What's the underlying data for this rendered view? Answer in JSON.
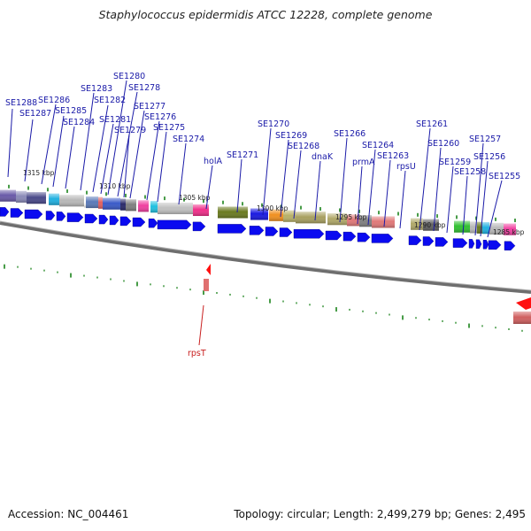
{
  "title": "Staphylococcus epidermidis ATCC 12228, complete genome",
  "footer": {
    "accession": "Accession: NC_004461",
    "topology": "Topology: circular; Length: 2,499,279 bp; Genes: 2,495"
  },
  "colors": {
    "gene_label": "#1a1aa8",
    "minus_strand_label": "#c81e1e",
    "forward_arrow": "#0a0af0",
    "reverse_arrow": "#ff1010",
    "tick": "#0a7a0a",
    "backbone": "#7a7a7a"
  },
  "kbp_labels": [
    "1315 kbp",
    "1310 kbp",
    "1305 kbp",
    "1300 kbp",
    "1295 kbp",
    "1290 kbp",
    "1285 kbp"
  ],
  "gene_labels": [
    "SE1288",
    "SE1287",
    "SE1286",
    "SE1285",
    "SE1284",
    "SE1283",
    "SE1282",
    "SE1281",
    "SE1280",
    "SE1278",
    "SE1279",
    "SE1277",
    "SE1276",
    "SE1275",
    "SE1274",
    "holA",
    "SE1271",
    "SE1270",
    "SE1269",
    "SE1268",
    "dnaK",
    "SE1266",
    "prmA",
    "SE1264",
    "SE1263",
    "rpsU",
    "SE1261",
    "SE1260",
    "SE1259",
    "SE1258",
    "SE1257",
    "SE1256",
    "SE1255"
  ],
  "minus_strand_labels": [
    "rpsT"
  ]
}
